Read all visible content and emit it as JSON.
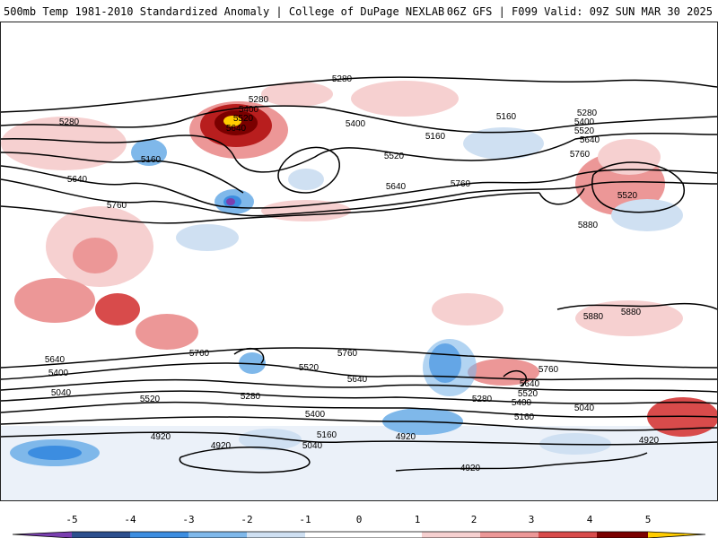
{
  "header": {
    "left": "500mb Temp 1981-2010 Standardized Anomaly | College of DuPage NEXLAB",
    "right": "06Z GFS | F099 Valid: 09Z SUN MAR 30 2025"
  },
  "contours": {
    "height_labels": [
      "5280",
      "5280",
      "5400",
      "5520",
      "5640",
      "5160",
      "5640",
      "5760",
      "5280",
      "5400",
      "5520",
      "5160",
      "5640",
      "5760",
      "5160",
      "5280",
      "5400",
      "5520",
      "5640",
      "5760",
      "5520",
      "5880",
      "5880",
      "5880",
      "5760",
      "5640",
      "5400",
      "5040",
      "5520",
      "5280",
      "5400",
      "5160",
      "5040",
      "4920",
      "4920",
      "4920",
      "5520",
      "5640",
      "5760",
      "5160",
      "5280",
      "5400",
      "5520",
      "5640",
      "5760",
      "5040",
      "4920",
      "4920",
      "5760"
    ],
    "line_color": "#000000"
  },
  "anomaly_colors": {
    "neg5": "#7a3fb0",
    "neg4": "#2c4f8e",
    "neg3": "#3c8de0",
    "neg2": "#7fb8ea",
    "neg1": "#cfe0f2",
    "zero": "#ffffff",
    "pos1": "#f6d0d0",
    "pos2": "#ec9797",
    "pos3": "#d84b4b",
    "pos4": "#b81e1e",
    "pos5": "#7a0000",
    "pos6": "#ffcc00"
  },
  "colorbar": {
    "ticks": [
      "-5",
      "-4",
      "-3",
      "-2",
      "-1",
      "0",
      "1",
      "2",
      "3",
      "4",
      "5"
    ]
  }
}
